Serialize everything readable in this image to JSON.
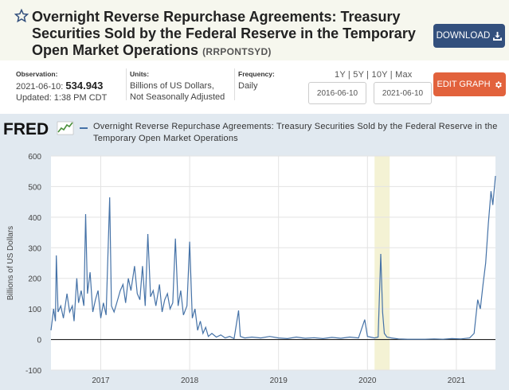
{
  "header": {
    "title": "Overnight Reverse Repurchase Agreements: Treasury Securities Sold by the Federal Reserve in the Temporary Open Market Operations",
    "series_id": "(RRPONTSYD)",
    "download_label": "DOWNLOAD",
    "accent": "#33507d"
  },
  "observation": {
    "label": "Observation:",
    "date": "2021-06-10:",
    "value": "534.943",
    "updated": "Updated: 1:38 PM CDT"
  },
  "units": {
    "label": "Units:",
    "line1": "Billions of US Dollars,",
    "line2": "Not Seasonally Adjusted"
  },
  "frequency": {
    "label": "Frequency:",
    "value": "Daily"
  },
  "controls": {
    "range_1y": "1Y",
    "range_5y": "5Y",
    "range_10y": "10Y",
    "range_max": "Max",
    "sep": "|",
    "start_date": "2016-06-10",
    "end_date": "2021-06-10",
    "edit_label": "EDIT GRAPH",
    "edit_color": "#e2623c"
  },
  "graph": {
    "logo": "FRED",
    "legend": "Overnight Reverse Repurchase Agreements: Treasury Securities Sold by the Federal Reserve in the Temporary Open Market Operations",
    "series_color": "#4572a7",
    "recession_color": "#f4f2d4"
  },
  "chart_data": {
    "type": "line",
    "title": "Overnight Reverse Repurchase Agreements: Treasury Securities Sold by the Federal Reserve in the Temporary Open Market Operations",
    "xlabel": "",
    "ylabel": "Billions of US Dollars",
    "ylim": [
      -100,
      600
    ],
    "xlim": [
      2016.44,
      2021.44
    ],
    "yticks": [
      "600",
      "500",
      "400",
      "300",
      "200",
      "100",
      "0",
      "-100"
    ],
    "xticks": [
      {
        "label": "2017",
        "x": 2017.0
      },
      {
        "label": "2018",
        "x": 2018.0
      },
      {
        "label": "2019",
        "x": 2019.0
      },
      {
        "label": "2020",
        "x": 2020.0
      },
      {
        "label": "2021",
        "x": 2021.0
      }
    ],
    "shaded_period": [
      2020.08,
      2020.25
    ],
    "grid": true,
    "series": [
      {
        "name": "RRPONTSYD",
        "points": [
          [
            2016.44,
            30
          ],
          [
            2016.47,
            100
          ],
          [
            2016.49,
            60
          ],
          [
            2016.5,
            275
          ],
          [
            2016.52,
            90
          ],
          [
            2016.55,
            110
          ],
          [
            2016.58,
            70
          ],
          [
            2016.62,
            150
          ],
          [
            2016.65,
            90
          ],
          [
            2016.68,
            110
          ],
          [
            2016.7,
            60
          ],
          [
            2016.73,
            200
          ],
          [
            2016.75,
            120
          ],
          [
            2016.78,
            160
          ],
          [
            2016.81,
            110
          ],
          [
            2016.83,
            410
          ],
          [
            2016.85,
            150
          ],
          [
            2016.88,
            220
          ],
          [
            2016.91,
            90
          ],
          [
            2016.94,
            130
          ],
          [
            2016.97,
            160
          ],
          [
            2017.0,
            70
          ],
          [
            2017.03,
            120
          ],
          [
            2017.06,
            80
          ],
          [
            2017.1,
            465
          ],
          [
            2017.12,
            110
          ],
          [
            2017.15,
            90
          ],
          [
            2017.18,
            120
          ],
          [
            2017.22,
            160
          ],
          [
            2017.25,
            180
          ],
          [
            2017.28,
            120
          ],
          [
            2017.31,
            200
          ],
          [
            2017.34,
            160
          ],
          [
            2017.38,
            240
          ],
          [
            2017.41,
            150
          ],
          [
            2017.44,
            130
          ],
          [
            2017.47,
            240
          ],
          [
            2017.5,
            110
          ],
          [
            2017.53,
            345
          ],
          [
            2017.56,
            140
          ],
          [
            2017.59,
            160
          ],
          [
            2017.62,
            110
          ],
          [
            2017.66,
            180
          ],
          [
            2017.69,
            90
          ],
          [
            2017.72,
            130
          ],
          [
            2017.75,
            150
          ],
          [
            2017.78,
            100
          ],
          [
            2017.81,
            120
          ],
          [
            2017.84,
            330
          ],
          [
            2017.87,
            110
          ],
          [
            2017.9,
            160
          ],
          [
            2017.93,
            80
          ],
          [
            2017.97,
            110
          ],
          [
            2018.0,
            320
          ],
          [
            2018.03,
            70
          ],
          [
            2018.06,
            100
          ],
          [
            2018.09,
            30
          ],
          [
            2018.12,
            60
          ],
          [
            2018.15,
            20
          ],
          [
            2018.18,
            40
          ],
          [
            2018.21,
            10
          ],
          [
            2018.25,
            20
          ],
          [
            2018.3,
            8
          ],
          [
            2018.35,
            15
          ],
          [
            2018.4,
            5
          ],
          [
            2018.45,
            10
          ],
          [
            2018.5,
            3
          ],
          [
            2018.55,
            95
          ],
          [
            2018.57,
            10
          ],
          [
            2018.62,
            5
          ],
          [
            2018.7,
            8
          ],
          [
            2018.8,
            5
          ],
          [
            2018.9,
            10
          ],
          [
            2019.0,
            5
          ],
          [
            2019.1,
            3
          ],
          [
            2019.2,
            8
          ],
          [
            2019.3,
            4
          ],
          [
            2019.4,
            6
          ],
          [
            2019.5,
            3
          ],
          [
            2019.6,
            7
          ],
          [
            2019.7,
            4
          ],
          [
            2019.8,
            8
          ],
          [
            2019.9,
            5
          ],
          [
            2019.97,
            65
          ],
          [
            2020.0,
            10
          ],
          [
            2020.08,
            5
          ],
          [
            2020.12,
            8
          ],
          [
            2020.15,
            280
          ],
          [
            2020.17,
            90
          ],
          [
            2020.19,
            20
          ],
          [
            2020.22,
            8
          ],
          [
            2020.27,
            5
          ],
          [
            2020.35,
            2
          ],
          [
            2020.45,
            1
          ],
          [
            2020.55,
            1
          ],
          [
            2020.65,
            1
          ],
          [
            2020.75,
            2
          ],
          [
            2020.85,
            1
          ],
          [
            2020.95,
            3
          ],
          [
            2021.05,
            2
          ],
          [
            2021.15,
            5
          ],
          [
            2021.2,
            20
          ],
          [
            2021.24,
            130
          ],
          [
            2021.27,
            100
          ],
          [
            2021.3,
            180
          ],
          [
            2021.33,
            250
          ],
          [
            2021.36,
            380
          ],
          [
            2021.39,
            485
          ],
          [
            2021.41,
            440
          ],
          [
            2021.44,
            535
          ]
        ]
      }
    ]
  }
}
